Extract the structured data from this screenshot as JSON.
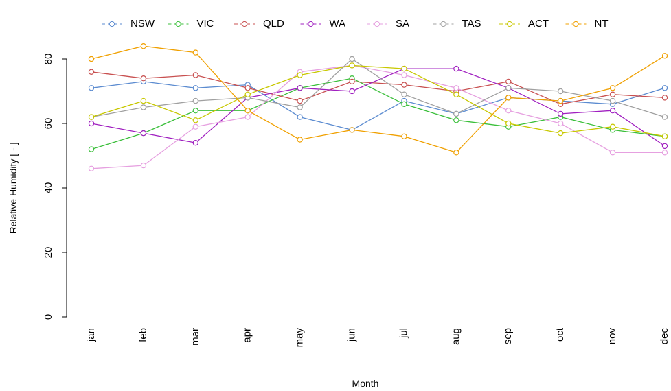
{
  "chart_data": {
    "type": "line",
    "xlabel": "Month",
    "ylabel": "Relative Humidity [ - ]",
    "categories": [
      "jan",
      "feb",
      "mar",
      "apr",
      "may",
      "jun",
      "jul",
      "aug",
      "sep",
      "oct",
      "nov",
      "dec"
    ],
    "ylim": [
      -4,
      96
    ],
    "yticks": [
      0,
      20,
      40,
      60,
      80
    ],
    "legend": "top",
    "grid": false,
    "series": [
      {
        "name": "NSW",
        "color": "#5b8bd0",
        "values": [
          71,
          73,
          71,
          72,
          62,
          58,
          67,
          63,
          68,
          67,
          66,
          71
        ]
      },
      {
        "name": "VIC",
        "color": "#3bbf3b",
        "values": [
          52,
          57,
          64,
          64,
          71,
          74,
          66,
          61,
          59,
          62,
          58,
          56
        ]
      },
      {
        "name": "QLD",
        "color": "#c85050",
        "values": [
          76,
          74,
          75,
          71,
          67,
          73,
          72,
          70,
          73,
          66,
          69,
          68
        ]
      },
      {
        "name": "WA",
        "color": "#a020c0",
        "values": [
          60,
          57,
          54,
          68,
          71,
          70,
          77,
          77,
          71,
          63,
          64,
          53
        ]
      },
      {
        "name": "SA",
        "color": "#e6a0e0",
        "values": [
          46,
          47,
          59,
          62,
          76,
          78,
          75,
          71,
          64,
          60,
          51,
          51
        ]
      },
      {
        "name": "TAS",
        "color": "#a0a0a0",
        "values": [
          62,
          65,
          67,
          68,
          65,
          80,
          69,
          63,
          71,
          70,
          67,
          62
        ]
      },
      {
        "name": "ACT",
        "color": "#c8c800",
        "values": [
          62,
          67,
          61,
          69,
          75,
          78,
          77,
          69,
          60,
          57,
          59,
          56
        ]
      },
      {
        "name": "NT",
        "color": "#f0a000",
        "values": [
          80,
          84,
          82,
          64,
          55,
          58,
          56,
          51,
          68,
          67,
          71,
          81
        ]
      }
    ]
  }
}
